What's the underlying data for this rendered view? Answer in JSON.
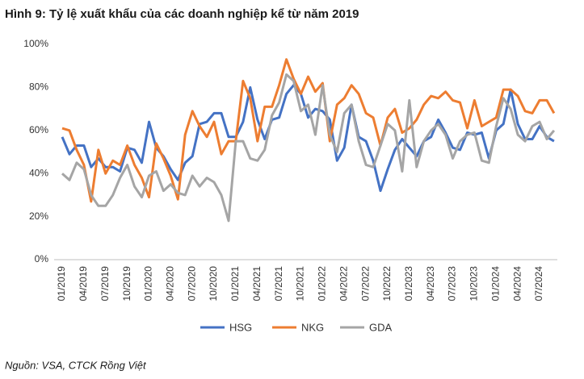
{
  "chart_data": {
    "type": "line",
    "title": "Hình 9: Tỷ lệ xuất khẩu của các doanh nghiệp kể từ năm 2019",
    "source": "Nguồn: VSA, CTCK Rồng Việt",
    "categories": [
      "01/2019",
      null,
      null,
      "04/2019",
      null,
      null,
      "07/2019",
      null,
      null,
      "10/2019",
      null,
      null,
      "01/2020",
      null,
      null,
      "04/2020",
      null,
      null,
      "07/2020",
      null,
      null,
      "10/2020",
      null,
      null,
      "01/2021",
      null,
      null,
      "04/2021",
      null,
      null,
      "07/2021",
      null,
      null,
      "10/2021",
      null,
      null,
      "01/2022",
      null,
      null,
      "04/2022",
      null,
      null,
      "07/2022",
      null,
      null,
      "10/2022",
      null,
      null,
      "01/2023",
      null,
      null,
      "04/2023",
      null,
      null,
      "07/2023",
      null,
      null,
      "10/2023",
      null,
      null,
      "01/2024",
      null,
      null,
      "04/2024",
      null,
      null,
      "07/2024",
      null,
      null
    ],
    "series": [
      {
        "name": "HSG",
        "color": "#4472c4",
        "values": [
          57,
          49,
          53,
          53,
          43,
          47,
          43,
          43,
          41,
          52,
          51,
          45,
          64,
          52,
          48,
          42,
          37,
          45,
          48,
          63,
          64,
          68,
          68,
          57,
          57,
          64,
          80,
          65,
          56,
          65,
          66,
          77,
          81,
          77,
          66,
          70,
          69,
          65,
          46,
          52,
          72,
          57,
          55,
          46,
          32,
          42,
          51,
          56,
          52,
          48,
          55,
          57,
          65,
          59,
          52,
          51,
          59,
          58,
          59,
          47,
          60,
          63,
          79,
          63,
          56,
          56,
          62,
          57,
          55
        ]
      },
      {
        "name": "NKG",
        "color": "#ed7d31",
        "values": [
          61,
          60,
          51,
          44,
          27,
          51,
          40,
          46,
          44,
          53,
          44,
          38,
          29,
          54,
          47,
          39,
          28,
          58,
          69,
          62,
          57,
          64,
          49,
          55,
          55,
          83,
          75,
          55,
          71,
          71,
          81,
          93,
          84,
          77,
          85,
          78,
          82,
          55,
          72,
          75,
          81,
          77,
          68,
          66,
          53,
          66,
          70,
          59,
          61,
          65,
          72,
          76,
          75,
          78,
          74,
          73,
          61,
          74,
          62,
          64,
          66,
          79,
          79,
          76,
          69,
          68,
          74,
          74,
          68
        ]
      },
      {
        "name": "GDA",
        "color": "#a5a5a5",
        "values": [
          40,
          37,
          45,
          42,
          30,
          25,
          25,
          30,
          38,
          44,
          34,
          29,
          39,
          41,
          32,
          35,
          31,
          30,
          39,
          34,
          38,
          36,
          30,
          18,
          55,
          55,
          47,
          46,
          51,
          67,
          73,
          86,
          83,
          69,
          72,
          58,
          81,
          58,
          50,
          68,
          72,
          55,
          44,
          43,
          53,
          63,
          60,
          41,
          74,
          43,
          55,
          60,
          63,
          58,
          47,
          55,
          58,
          59,
          46,
          45,
          62,
          75,
          70,
          58,
          55,
          62,
          64,
          56,
          60
        ]
      }
    ],
    "ylim": [
      0,
      100
    ],
    "yticks": [
      {
        "value": 0,
        "label": "0%"
      },
      {
        "value": 20,
        "label": "20%"
      },
      {
        "value": 40,
        "label": "40%"
      },
      {
        "value": 60,
        "label": "60%"
      },
      {
        "value": 80,
        "label": "80%"
      },
      {
        "value": 100,
        "label": "100%"
      }
    ],
    "grid": false,
    "legend": "bottom"
  }
}
